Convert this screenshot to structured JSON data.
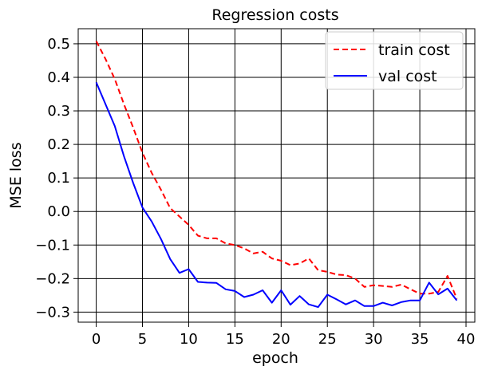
{
  "chart_data": {
    "type": "line",
    "title": "Regression costs",
    "xlabel": "epoch",
    "ylabel": "MSE loss",
    "xlim": [
      -1.95,
      40.95
    ],
    "ylim": [
      -0.33,
      0.545
    ],
    "x_ticks": [
      0,
      5,
      10,
      15,
      20,
      25,
      30,
      35,
      40
    ],
    "x_tick_labels": [
      "0",
      "5",
      "10",
      "15",
      "20",
      "25",
      "30",
      "35",
      "40"
    ],
    "y_ticks": [
      0.5,
      0.4,
      0.3,
      0.2,
      0.1,
      0.0,
      -0.1,
      -0.2,
      -0.3
    ],
    "y_tick_labels": [
      "0.5",
      "0.4",
      "0.3",
      "0.2",
      "0.1",
      "0.0",
      "−0.1",
      "−0.2",
      "−0.3"
    ],
    "grid": true,
    "legend_position": "top-right",
    "x": [
      0,
      1,
      2,
      3,
      4,
      5,
      6,
      7,
      8,
      9,
      10,
      11,
      12,
      13,
      14,
      15,
      16,
      17,
      18,
      19,
      20,
      21,
      22,
      23,
      24,
      25,
      26,
      27,
      28,
      29,
      30,
      31,
      32,
      33,
      34,
      35,
      36,
      37,
      38,
      39
    ],
    "series": [
      {
        "name": "train cost",
        "color": "#ff0000",
        "style": "dashed",
        "values": [
          0.508,
          0.455,
          0.395,
          0.32,
          0.25,
          0.175,
          0.115,
          0.065,
          0.01,
          -0.015,
          -0.04,
          -0.072,
          -0.08,
          -0.08,
          -0.095,
          -0.1,
          -0.11,
          -0.125,
          -0.12,
          -0.14,
          -0.147,
          -0.16,
          -0.155,
          -0.14,
          -0.175,
          -0.18,
          -0.188,
          -0.19,
          -0.2,
          -0.225,
          -0.22,
          -0.222,
          -0.225,
          -0.218,
          -0.232,
          -0.245,
          -0.245,
          -0.24,
          -0.192,
          -0.26
        ]
      },
      {
        "name": "val cost",
        "color": "#0000ff",
        "style": "solid",
        "values": [
          0.385,
          0.32,
          0.255,
          0.165,
          0.085,
          0.012,
          -0.03,
          -0.082,
          -0.142,
          -0.183,
          -0.172,
          -0.21,
          -0.212,
          -0.213,
          -0.232,
          -0.237,
          -0.255,
          -0.248,
          -0.235,
          -0.272,
          -0.235,
          -0.278,
          -0.252,
          -0.277,
          -0.285,
          -0.248,
          -0.262,
          -0.277,
          -0.265,
          -0.282,
          -0.282,
          -0.272,
          -0.28,
          -0.27,
          -0.265,
          -0.265,
          -0.212,
          -0.247,
          -0.23,
          -0.265
        ]
      }
    ]
  }
}
